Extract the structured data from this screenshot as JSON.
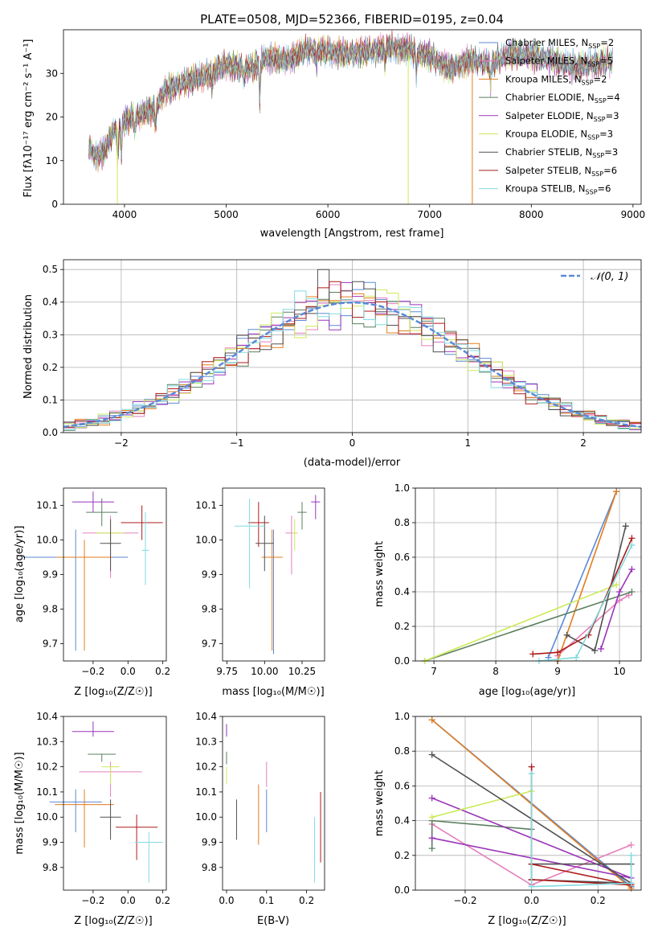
{
  "colors": [
    "#5b8ad6",
    "#e57fbd",
    "#e37d1d",
    "#5a7f5f",
    "#9a35b9",
    "#ccea59",
    "#505050",
    "#ad1a1a",
    "#82dbe0"
  ],
  "chart_data": [
    {
      "type": "line",
      "title": "PLATE=0508, MJD=52366, FIBERID=0195, z=0.04",
      "xlabel": "wavelength [Angstrom, rest frame]",
      "ylabel": "Flux [fλ10⁻¹⁷ erg cm⁻² s⁻¹ A⁻¹]",
      "xlim": [
        3400,
        9080
      ],
      "ylim": [
        0,
        40
      ],
      "xticks": [
        4000,
        5000,
        6000,
        7000,
        8000,
        9000
      ],
      "yticks": [
        0,
        10,
        20,
        30
      ],
      "grid": false,
      "legend_position": "top-right",
      "legend": [
        {
          "label": "Chabrier MILES, N",
          "sub": "SSP",
          "tail": "=2"
        },
        {
          "label": "Salpeter MILES, N",
          "sub": "SSP",
          "tail": "=5"
        },
        {
          "label": "Kroupa MILES, N",
          "sub": "SSP",
          "tail": "=2"
        },
        {
          "label": "Chabrier ELODIE, N",
          "sub": "SSP",
          "tail": "=4"
        },
        {
          "label": "Salpeter ELODIE, N",
          "sub": "SSP",
          "tail": "=3"
        },
        {
          "label": "Kroupa ELODIE, N",
          "sub": "SSP",
          "tail": "=3"
        },
        {
          "label": "Chabrier STELIB, N",
          "sub": "SSP",
          "tail": "=3"
        },
        {
          "label": "Salpeter STELIB, N",
          "sub": "SSP",
          "tail": "=6"
        },
        {
          "label": "Kroupa STELIB, N",
          "sub": "SSP",
          "tail": "=6"
        }
      ],
      "continuum": {
        "x": [
          3650,
          3720,
          3800,
          3900,
          4000,
          4100,
          4200,
          4300,
          4400,
          4600,
          4800,
          5000,
          5200,
          5400,
          5600,
          5800,
          6000,
          6200,
          6400,
          6600,
          6800,
          7000,
          7200,
          7400,
          7600,
          7800,
          8000,
          8200,
          8400,
          8600,
          8800
        ],
        "y": [
          13,
          11,
          12,
          17,
          19,
          20,
          21,
          22,
          26,
          28,
          29.5,
          32,
          31,
          33.5,
          33,
          35.5,
          35,
          34.5,
          35,
          36,
          35.5,
          34,
          31,
          33,
          32,
          34.5,
          34,
          33,
          31.5,
          32,
          33
        ]
      },
      "spikes": [
        {
          "x": 3930,
          "y": 0
        },
        {
          "x": 6790,
          "y": 0
        },
        {
          "x": 7420,
          "y": 0
        }
      ]
    },
    {
      "type": "histogram",
      "xlabel": "(data-model)/error",
      "ylabel": "Normed distribution",
      "xlim": [
        -2.5,
        2.5
      ],
      "ylim": [
        0,
        0.53
      ],
      "xticks": [
        -2,
        -1,
        0,
        1,
        2
      ],
      "yticks": [
        0.0,
        0.1,
        0.2,
        0.3,
        0.4,
        0.5
      ],
      "grid": true,
      "bin_width": 0.1,
      "legend": "𝒩(0, 1)",
      "legend_position": "top-right",
      "reference_curve": "normal(0,1)",
      "peak_values": [
        0.5,
        0.46,
        0.45,
        0.44,
        0.43
      ]
    },
    {
      "type": "errorbar",
      "xlabel": "Z [log₁₀(Z/Z☉)]",
      "ylabel": "age  [log₁₀(age/yr)]",
      "xlim": [
        -0.37,
        0.22
      ],
      "ylim": [
        9.65,
        10.15
      ],
      "xticks": [
        -0.2,
        0.0,
        0.2
      ],
      "yticks": [
        9.7,
        9.8,
        9.9,
        10.0,
        10.1
      ],
      "points": [
        {
          "x": -0.3,
          "y": 9.95,
          "xerr": 0.3,
          "yerr_lo": 0.27,
          "yerr_hi": 0.08
        },
        {
          "x": -0.1,
          "y": 10.02,
          "xerr": 0.16,
          "yerr_lo": 0.13,
          "yerr_hi": 0.05
        },
        {
          "x": -0.25,
          "y": 9.95,
          "xerr": 0.16,
          "yerr_lo": 0.27,
          "yerr_hi": 0.05
        },
        {
          "x": -0.15,
          "y": 10.08,
          "xerr": 0.09,
          "yerr_lo": 0.04,
          "yerr_hi": 0.04
        },
        {
          "x": -0.2,
          "y": 10.11,
          "xerr": 0.12,
          "yerr_lo": 0.03,
          "yerr_hi": 0.03
        },
        {
          "x": -0.1,
          "y": 10.02,
          "xerr": 0.08,
          "yerr_lo": 0.04,
          "yerr_hi": 0.04
        },
        {
          "x": -0.1,
          "y": 9.99,
          "xerr": 0.06,
          "yerr_lo": 0.08,
          "yerr_hi": 0.07
        },
        {
          "x": 0.08,
          "y": 10.05,
          "xerr": 0.12,
          "yerr_lo": 0.05,
          "yerr_hi": 0.05
        },
        {
          "x": 0.1,
          "y": 9.97,
          "xerr": 0.02,
          "yerr_lo": 0.1,
          "yerr_hi": 0.11
        }
      ]
    },
    {
      "type": "errorbar",
      "xlabel": "mass [log₁₀(M/M☉)]",
      "ylabel": "",
      "xlim": [
        9.72,
        10.4
      ],
      "ylim": [
        9.65,
        10.15
      ],
      "xticks": [
        9.75,
        10.0,
        10.25
      ],
      "yticks": [
        9.7,
        9.8,
        9.9,
        10.0,
        10.1
      ],
      "points": [
        {
          "x": 10.06,
          "y": 9.95,
          "xerr": 0.05,
          "yerr_lo": 0.28,
          "yerr_hi": 0.08
        },
        {
          "x": 10.18,
          "y": 10.02,
          "xerr": 0.04,
          "yerr_lo": 0.12,
          "yerr_hi": 0.05
        },
        {
          "x": 10.05,
          "y": 9.95,
          "xerr": 0.07,
          "yerr_lo": 0.27,
          "yerr_hi": 0.08
        },
        {
          "x": 10.25,
          "y": 10.08,
          "xerr": 0.03,
          "yerr_lo": 0.05,
          "yerr_hi": 0.03
        },
        {
          "x": 10.34,
          "y": 10.11,
          "xerr": 0.03,
          "yerr_lo": 0.05,
          "yerr_hi": 0.02
        },
        {
          "x": 10.2,
          "y": 10.02,
          "xerr": 0.02,
          "yerr_lo": 0.05,
          "yerr_hi": 0.04
        },
        {
          "x": 10.0,
          "y": 9.99,
          "xerr": 0.06,
          "yerr_lo": 0.08,
          "yerr_hi": 0.08
        },
        {
          "x": 9.96,
          "y": 10.05,
          "xerr": 0.07,
          "yerr_lo": 0.07,
          "yerr_hi": 0.06
        },
        {
          "x": 9.9,
          "y": 10.04,
          "xerr": 0.1,
          "yerr_lo": 0.18,
          "yerr_hi": 0.08
        }
      ]
    },
    {
      "type": "line",
      "xlabel": "age  [log₁₀(age/yr)]",
      "ylabel": "mass weight",
      "xlim": [
        6.7,
        10.35
      ],
      "ylim": [
        0,
        1
      ],
      "xticks": [
        7,
        8,
        9,
        10
      ],
      "yticks": [
        0.0,
        0.2,
        0.4,
        0.6,
        0.8,
        1.0
      ],
      "grid": true,
      "series": [
        {
          "x": [
            8.85,
            9.95
          ],
          "y": [
            0.02,
            0.98
          ]
        },
        {
          "x": [
            9.0,
            10.0,
            10.15
          ],
          "y": [
            0.03,
            0.35,
            0.38
          ]
        },
        {
          "x": [
            9.0,
            9.95
          ],
          "y": [
            0.0,
            0.98
          ]
        },
        {
          "x": [
            6.85,
            10.2
          ],
          "y": [
            0.0,
            0.4
          ]
        },
        {
          "x": [
            9.7,
            10.0,
            10.2
          ],
          "y": [
            0.07,
            0.4,
            0.53
          ]
        },
        {
          "x": [
            6.85,
            9.95
          ],
          "y": [
            0.0,
            0.44
          ]
        },
        {
          "x": [
            9.15,
            9.6,
            10.1
          ],
          "y": [
            0.15,
            0.06,
            0.78
          ]
        },
        {
          "x": [
            8.6,
            9.0,
            9.5,
            10.2
          ],
          "y": [
            0.04,
            0.05,
            0.15,
            0.71
          ]
        },
        {
          "x": [
            8.7,
            9.3,
            10.2
          ],
          "y": [
            0.0,
            0.02,
            0.67
          ]
        }
      ]
    },
    {
      "type": "errorbar",
      "xlabel": "Z [log₁₀(Z/Z☉)]",
      "ylabel": "mass [log₁₀(M/M☉)]",
      "xlim": [
        -0.37,
        0.22
      ],
      "ylim": [
        9.71,
        10.4
      ],
      "xticks": [
        -0.2,
        0.0,
        0.2
      ],
      "yticks": [
        9.8,
        9.9,
        10.0,
        10.1,
        10.2,
        10.3,
        10.4
      ],
      "points": [
        {
          "x": -0.3,
          "y": 10.06,
          "xerr": 0.15,
          "yerr_lo": 0.12,
          "yerr_hi": 0.05
        },
        {
          "x": -0.1,
          "y": 10.18,
          "xerr": 0.18,
          "yerr_lo": 0.1,
          "yerr_hi": 0.04
        },
        {
          "x": -0.25,
          "y": 10.05,
          "xerr": 0.17,
          "yerr_lo": 0.17,
          "yerr_hi": 0.06
        },
        {
          "x": -0.15,
          "y": 10.25,
          "xerr": 0.08,
          "yerr_lo": 0.03,
          "yerr_hi": 0.0
        },
        {
          "x": -0.2,
          "y": 10.34,
          "xerr": 0.12,
          "yerr_lo": 0.02,
          "yerr_hi": 0.04
        },
        {
          "x": -0.1,
          "y": 10.2,
          "xerr": 0.05,
          "yerr_lo": 0.07,
          "yerr_hi": 0.0
        },
        {
          "x": -0.1,
          "y": 10.0,
          "xerr": 0.06,
          "yerr_lo": 0.09,
          "yerr_hi": 0.07
        },
        {
          "x": 0.05,
          "y": 9.96,
          "xerr": 0.12,
          "yerr_lo": 0.13,
          "yerr_hi": 0.05
        },
        {
          "x": 0.12,
          "y": 9.9,
          "xerr": 0.08,
          "yerr_lo": 0.16,
          "yerr_hi": 0.04
        }
      ]
    },
    {
      "type": "errorbar",
      "xlabel": "E(B-V)",
      "ylabel": "",
      "xlim": [
        -0.01,
        0.245
      ],
      "ylim": [
        9.71,
        10.4
      ],
      "xticks": [
        0.0,
        0.1,
        0.2
      ],
      "yticks": [
        9.8,
        9.9,
        10.0,
        10.1,
        10.2,
        10.3,
        10.4
      ],
      "points": [
        {
          "x": 0.1,
          "y": 10.06,
          "yerr_lo": 0.12,
          "yerr_hi": 0.05
        },
        {
          "x": 0.1,
          "y": 10.18,
          "yerr_lo": 0.06,
          "yerr_hi": 0.04
        },
        {
          "x": 0.08,
          "y": 10.05,
          "yerr_lo": 0.16,
          "yerr_hi": 0.08
        },
        {
          "x": 0.0,
          "y": 10.25,
          "yerr_lo": 0.04,
          "yerr_hi": 0.01
        },
        {
          "x": 0.0,
          "y": 10.34,
          "yerr_lo": 0.02,
          "yerr_hi": 0.03
        },
        {
          "x": 0.0,
          "y": 10.2,
          "yerr_lo": 0.07,
          "yerr_hi": 0.0
        },
        {
          "x": 0.025,
          "y": 10.0,
          "yerr_lo": 0.09,
          "yerr_hi": 0.07
        },
        {
          "x": 0.235,
          "y": 9.96,
          "yerr_lo": 0.14,
          "yerr_hi": 0.14
        },
        {
          "x": 0.22,
          "y": 9.88,
          "yerr_lo": 0.14,
          "yerr_hi": 0.12
        }
      ]
    },
    {
      "type": "line",
      "xlabel": "Z [log₁₀(Z/Z☉)]",
      "ylabel": "mass weight",
      "xlim": [
        -0.35,
        0.33
      ],
      "ylim": [
        0,
        1
      ],
      "xticks": [
        -0.2,
        0.0,
        0.2
      ],
      "yticks": [
        0.0,
        0.2,
        0.4,
        0.6,
        0.8,
        1.0
      ],
      "grid": true,
      "series": [
        {
          "x": [
            -0.3,
            0.3
          ],
          "y": [
            0.98,
            0.02
          ]
        },
        {
          "x": [
            -0.3,
            0.0,
            0.3
          ],
          "y": [
            0.38,
            0.03,
            0.26
          ]
        },
        {
          "x": [
            -0.3,
            0.3
          ],
          "y": [
            0.98,
            0.01
          ]
        },
        {
          "x": [
            -0.3,
            -0.3,
            0.0
          ],
          "y": [
            0.24,
            0.4,
            0.35
          ]
        },
        {
          "x": [
            -0.3,
            0.3,
            -0.3
          ],
          "y": [
            0.53,
            0.07,
            0.3
          ]
        },
        {
          "x": [
            -0.3,
            0.0,
            0.0
          ],
          "y": [
            0.42,
            0.57,
            0.57
          ]
        },
        {
          "x": [
            -0.3,
            0.3,
            0.0,
            0.0,
            0.3
          ],
          "y": [
            0.78,
            0.04,
            0.06,
            0.15,
            0.15
          ]
        },
        {
          "x": [
            0.0,
            0.0,
            0.3,
            0.0
          ],
          "y": [
            0.71,
            0.15,
            0.03,
            0.06
          ]
        },
        {
          "x": [
            0.0,
            0.0,
            0.3,
            0.3
          ],
          "y": [
            0.67,
            0.02,
            0.04,
            0.2
          ]
        }
      ]
    }
  ]
}
